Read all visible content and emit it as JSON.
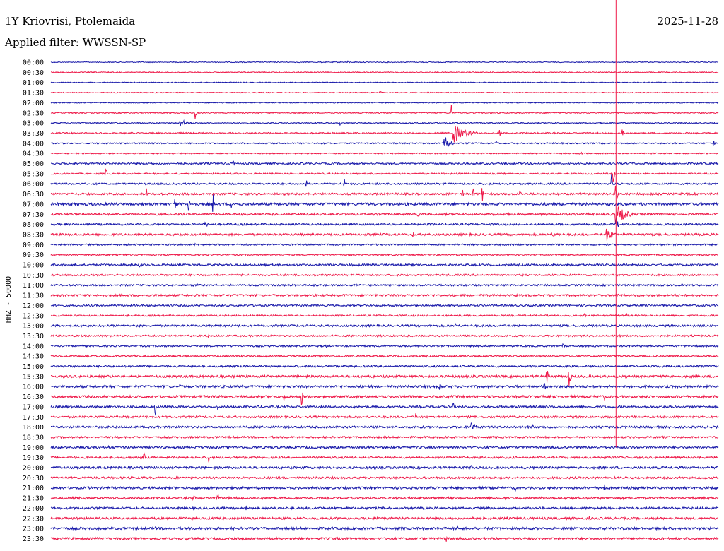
{
  "header": {
    "station": "1Y Kriovrisi, Ptolemaida",
    "date": "2025-11-28",
    "filter": "Applied filter: WWSSN-SP"
  },
  "chart_data": {
    "type": "line",
    "ylabel": "HHZ - 50000",
    "trace_colors": [
      "#1a1aaa",
      "#ee1a4a"
    ],
    "marker_color": "#ee1a4a",
    "marker_minute": 25.4,
    "marker_end_row": "19:00",
    "x_range_minutes": [
      0,
      30
    ],
    "rows": [
      "00:00",
      "00:30",
      "01:00",
      "01:30",
      "02:00",
      "02:30",
      "03:00",
      "03:30",
      "04:00",
      "04:30",
      "05:00",
      "05:30",
      "06:00",
      "06:30",
      "07:00",
      "07:30",
      "08:00",
      "08:30",
      "09:00",
      "09:30",
      "10:00",
      "10:30",
      "11:00",
      "11:30",
      "12:00",
      "12:30",
      "13:00",
      "13:30",
      "14:00",
      "14:30",
      "15:00",
      "15:30",
      "16:00",
      "16:30",
      "17:00",
      "17:30",
      "18:00",
      "18:30",
      "19:00",
      "19:30",
      "20:00",
      "20:30",
      "21:00",
      "21:30",
      "22:00",
      "22:30",
      "23:00",
      "23:30"
    ],
    "noise": [
      0.6,
      0.7,
      0.6,
      0.6,
      0.6,
      0.8,
      0.8,
      1.0,
      0.9,
      0.8,
      1.2,
      1.0,
      1.2,
      1.4,
      1.8,
      1.5,
      1.3,
      1.5,
      1.1,
      1.0,
      1.4,
      1.2,
      1.2,
      1.4,
      1.2,
      1.1,
      1.4,
      1.2,
      1.2,
      1.2,
      1.4,
      1.6,
      1.6,
      1.7,
      1.5,
      1.4,
      1.5,
      1.3,
      1.5,
      1.4,
      1.6,
      1.4,
      1.6,
      1.6,
      1.5,
      1.5,
      1.6,
      1.5
    ],
    "events": [
      {
        "row": "00:00",
        "minute": 13.3,
        "amplitude": 3,
        "duration": 0.3
      },
      {
        "row": "01:30",
        "minute": 14.8,
        "amplitude": 2,
        "duration": 0.4
      },
      {
        "row": "02:30",
        "minute": 6.5,
        "amplitude": 10,
        "duration": 0.1
      },
      {
        "row": "02:30",
        "minute": 18.0,
        "amplitude": 14,
        "duration": 0.1
      },
      {
        "row": "03:00",
        "minute": 5.8,
        "amplitude": 6,
        "duration": 1.0
      },
      {
        "row": "03:00",
        "minute": 13.0,
        "amplitude": 4,
        "duration": 0.1
      },
      {
        "row": "03:30",
        "minute": 9.8,
        "amplitude": 2,
        "duration": 1.2
      },
      {
        "row": "03:30",
        "minute": 18.1,
        "amplitude": 14,
        "duration": 1.5
      },
      {
        "row": "03:30",
        "minute": 20.2,
        "amplitude": 6,
        "duration": 0.1
      },
      {
        "row": "03:30",
        "minute": 25.7,
        "amplitude": 12,
        "duration": 0.1
      },
      {
        "row": "04:00",
        "minute": 17.7,
        "amplitude": 14,
        "duration": 0.6
      },
      {
        "row": "04:00",
        "minute": 20.0,
        "amplitude": 8,
        "duration": 0.1
      },
      {
        "row": "04:00",
        "minute": 29.8,
        "amplitude": 10,
        "duration": 0.1
      },
      {
        "row": "04:30",
        "minute": 23.8,
        "amplitude": 2,
        "duration": 0.6
      },
      {
        "row": "05:00",
        "minute": 8.2,
        "amplitude": 5,
        "duration": 0.1
      },
      {
        "row": "05:00",
        "minute": 10.4,
        "amplitude": 4,
        "duration": 0.1
      },
      {
        "row": "05:30",
        "minute": 2.5,
        "amplitude": 7,
        "duration": 0.1
      },
      {
        "row": "05:30",
        "minute": 25.3,
        "amplitude": 12,
        "duration": 0.1
      },
      {
        "row": "06:00",
        "minute": 0.2,
        "amplitude": 4,
        "duration": 0.1
      },
      {
        "row": "06:00",
        "minute": 11.5,
        "amplitude": 6,
        "duration": 0.1
      },
      {
        "row": "06:00",
        "minute": 13.2,
        "amplitude": 8,
        "duration": 0.1
      },
      {
        "row": "06:00",
        "minute": 25.2,
        "amplitude": 14,
        "duration": 0.1
      },
      {
        "row": "06:30",
        "minute": 4.3,
        "amplitude": 8,
        "duration": 0.1
      },
      {
        "row": "06:30",
        "minute": 18.5,
        "amplitude": 9,
        "duration": 0.1
      },
      {
        "row": "06:30",
        "minute": 19.0,
        "amplitude": 11,
        "duration": 0.1
      },
      {
        "row": "06:30",
        "minute": 19.4,
        "amplitude": 10,
        "duration": 0.1
      },
      {
        "row": "06:30",
        "minute": 21.1,
        "amplitude": 7,
        "duration": 0.1
      },
      {
        "row": "06:30",
        "minute": 25.4,
        "amplitude": 14,
        "duration": 0.2
      },
      {
        "row": "07:00",
        "minute": 5.6,
        "amplitude": 14,
        "duration": 0.1
      },
      {
        "row": "07:00",
        "minute": 6.2,
        "amplitude": 14,
        "duration": 0.1
      },
      {
        "row": "07:00",
        "minute": 7.3,
        "amplitude": 14,
        "duration": 0.1
      },
      {
        "row": "07:00",
        "minute": 8.1,
        "amplitude": 14,
        "duration": 0.1
      },
      {
        "row": "07:30",
        "minute": 16.5,
        "amplitude": 3,
        "duration": 0.5
      },
      {
        "row": "07:30",
        "minute": 25.4,
        "amplitude": 14,
        "duration": 1.4
      },
      {
        "row": "08:00",
        "minute": 6.9,
        "amplitude": 4,
        "duration": 0.8
      },
      {
        "row": "08:00",
        "minute": 25.4,
        "amplitude": 10,
        "duration": 0.4
      },
      {
        "row": "08:30",
        "minute": 16.3,
        "amplitude": 4,
        "duration": 0.2
      },
      {
        "row": "08:30",
        "minute": 22.5,
        "amplitude": 3,
        "duration": 2.5
      },
      {
        "row": "08:30",
        "minute": 25.0,
        "amplitude": 10,
        "duration": 0.8
      },
      {
        "row": "09:00",
        "minute": 6.5,
        "amplitude": 2,
        "duration": 0.2
      },
      {
        "row": "09:00",
        "minute": 21.0,
        "amplitude": 2,
        "duration": 0.8
      },
      {
        "row": "10:00",
        "minute": 4.0,
        "amplitude": 3,
        "duration": 0.6
      },
      {
        "row": "10:30",
        "minute": 21.2,
        "amplitude": 2,
        "duration": 0.6
      },
      {
        "row": "11:00",
        "minute": 6.6,
        "amplitude": 3,
        "duration": 0.3
      },
      {
        "row": "11:30",
        "minute": 25.4,
        "amplitude": 3,
        "duration": 1.2
      },
      {
        "row": "12:30",
        "minute": 24.0,
        "amplitude": 12,
        "duration": 0.1
      },
      {
        "row": "12:30",
        "minute": 25.9,
        "amplitude": 4,
        "duration": 0.1
      },
      {
        "row": "13:00",
        "minute": 7.0,
        "amplitude": 2,
        "duration": 0.6
      },
      {
        "row": "13:00",
        "minute": 18.2,
        "amplitude": 4,
        "duration": 0.1
      },
      {
        "row": "13:30",
        "minute": 7.0,
        "amplitude": 3,
        "duration": 0.6
      },
      {
        "row": "14:00",
        "minute": 12.4,
        "amplitude": 3,
        "duration": 0.1
      },
      {
        "row": "14:00",
        "minute": 23.0,
        "amplitude": 4,
        "duration": 0.1
      },
      {
        "row": "14:30",
        "minute": 3.8,
        "amplitude": 2,
        "duration": 0.6
      },
      {
        "row": "14:30",
        "minute": 23.5,
        "amplitude": 4,
        "duration": 0.1
      },
      {
        "row": "15:30",
        "minute": 22.3,
        "amplitude": 10,
        "duration": 0.3
      },
      {
        "row": "15:30",
        "minute": 23.3,
        "amplitude": 14,
        "duration": 0.2
      },
      {
        "row": "16:00",
        "minute": 5.8,
        "amplitude": 6,
        "duration": 0.1
      },
      {
        "row": "16:00",
        "minute": 17.5,
        "amplitude": 8,
        "duration": 0.1
      },
      {
        "row": "16:00",
        "minute": 22.2,
        "amplitude": 10,
        "duration": 0.1
      },
      {
        "row": "16:30",
        "minute": 10.5,
        "amplitude": 6,
        "duration": 0.1
      },
      {
        "row": "16:30",
        "minute": 11.3,
        "amplitude": 12,
        "duration": 0.1
      },
      {
        "row": "16:30",
        "minute": 24.9,
        "amplitude": 6,
        "duration": 0.1
      },
      {
        "row": "17:00",
        "minute": 4.7,
        "amplitude": 14,
        "duration": 0.1
      },
      {
        "row": "17:00",
        "minute": 7.5,
        "amplitude": 5,
        "duration": 0.1
      },
      {
        "row": "17:00",
        "minute": 18.1,
        "amplitude": 5,
        "duration": 0.1
      },
      {
        "row": "17:30",
        "minute": 16.4,
        "amplitude": 6,
        "duration": 0.1
      },
      {
        "row": "18:00",
        "minute": 9.5,
        "amplitude": 5,
        "duration": 0.1
      },
      {
        "row": "18:00",
        "minute": 18.9,
        "amplitude": 10,
        "duration": 0.5
      },
      {
        "row": "18:00",
        "minute": 21.7,
        "amplitude": 5,
        "duration": 0.1
      },
      {
        "row": "19:00",
        "minute": 2.6,
        "amplitude": 3,
        "duration": 0.1
      },
      {
        "row": "19:30",
        "minute": 4.2,
        "amplitude": 8,
        "duration": 0.1
      },
      {
        "row": "19:30",
        "minute": 7.1,
        "amplitude": 8,
        "duration": 0.1
      },
      {
        "row": "20:00",
        "minute": 18.9,
        "amplitude": 6,
        "duration": 0.1
      },
      {
        "row": "21:00",
        "minute": 6.5,
        "amplitude": 3,
        "duration": 0.2
      },
      {
        "row": "21:00",
        "minute": 20.9,
        "amplitude": 6,
        "duration": 0.1
      },
      {
        "row": "21:00",
        "minute": 24.9,
        "amplitude": 9,
        "duration": 0.1
      },
      {
        "row": "21:30",
        "minute": 6.4,
        "amplitude": 5,
        "duration": 0.3
      },
      {
        "row": "21:30",
        "minute": 7.5,
        "amplitude": 5,
        "duration": 0.3
      },
      {
        "row": "22:00",
        "minute": 8.8,
        "amplitude": 4,
        "duration": 0.1
      },
      {
        "row": "22:30",
        "minute": 14.7,
        "amplitude": 3,
        "duration": 0.4
      },
      {
        "row": "22:30",
        "minute": 19.0,
        "amplitude": 8,
        "duration": 0.2
      },
      {
        "row": "22:30",
        "minute": 24.2,
        "amplitude": 4,
        "duration": 0.2
      },
      {
        "row": "23:00",
        "minute": 4.7,
        "amplitude": 3,
        "duration": 0.1
      },
      {
        "row": "23:00",
        "minute": 18.3,
        "amplitude": 6,
        "duration": 0.2
      },
      {
        "row": "23:30",
        "minute": 6.1,
        "amplitude": 3,
        "duration": 0.2
      },
      {
        "row": "23:30",
        "minute": 17.8,
        "amplitude": 6,
        "duration": 0.1
      }
    ]
  }
}
